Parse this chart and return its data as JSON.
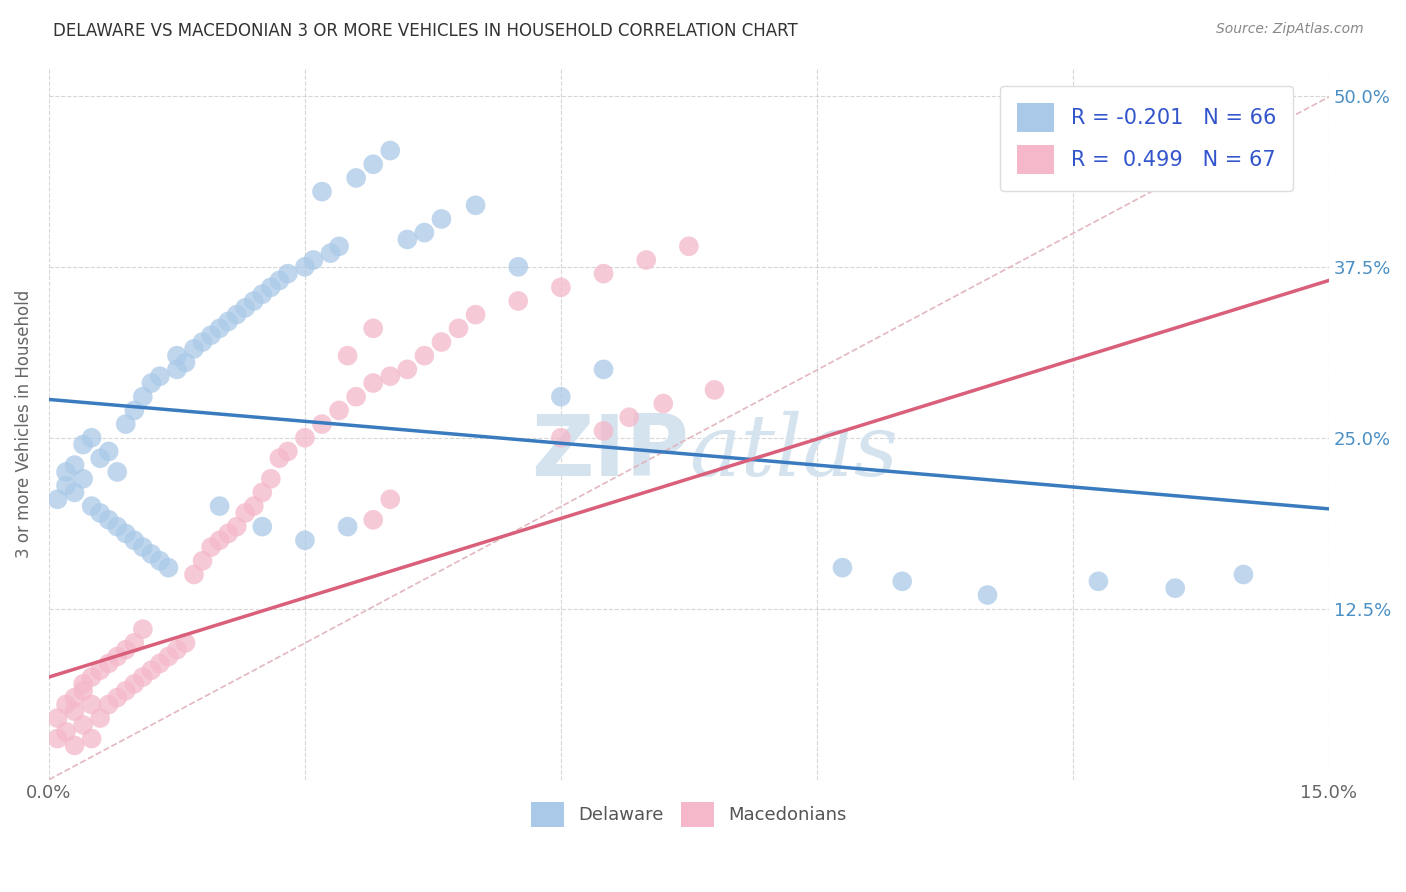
{
  "title": "DELAWARE VS MACEDONIAN 3 OR MORE VEHICLES IN HOUSEHOLD CORRELATION CHART",
  "source": "Source: ZipAtlas.com",
  "ylabel": "3 or more Vehicles in Household",
  "xlim": [
    0.0,
    0.15
  ],
  "ylim": [
    0.0,
    0.52
  ],
  "legend_r_delaware": "-0.201",
  "legend_n_delaware": "66",
  "legend_r_macedonian": "0.499",
  "legend_n_macedonian": "67",
  "color_delaware": "#aac9e8",
  "color_macedonian": "#f4b8ca",
  "color_delaware_line": "#3a7bbf",
  "color_macedonian_line": "#d95f7a",
  "color_diagonal_dashed": "#e0b0b8",
  "watermark_color": "#d5e3ef",
  "del_line_x0": 0.0,
  "del_line_y0": 0.278,
  "del_line_x1": 0.15,
  "del_line_y1": 0.198,
  "mac_line_x0": 0.0,
  "mac_line_y0": 0.075,
  "mac_line_x1": 0.15,
  "mac_line_y1": 0.365,
  "delaware_x": [
    0.001,
    0.002,
    0.002,
    0.003,
    0.003,
    0.004,
    0.004,
    0.005,
    0.005,
    0.006,
    0.006,
    0.007,
    0.007,
    0.008,
    0.008,
    0.009,
    0.009,
    0.01,
    0.01,
    0.011,
    0.011,
    0.012,
    0.012,
    0.013,
    0.013,
    0.014,
    0.015,
    0.015,
    0.016,
    0.017,
    0.018,
    0.019,
    0.02,
    0.021,
    0.022,
    0.023,
    0.024,
    0.025,
    0.026,
    0.027,
    0.028,
    0.03,
    0.031,
    0.032,
    0.033,
    0.034,
    0.036,
    0.038,
    0.04,
    0.042,
    0.044,
    0.046,
    0.05,
    0.055,
    0.06,
    0.065,
    0.02,
    0.025,
    0.03,
    0.035,
    0.093,
    0.1,
    0.11,
    0.123,
    0.132,
    0.14
  ],
  "delaware_y": [
    0.205,
    0.215,
    0.225,
    0.21,
    0.23,
    0.22,
    0.245,
    0.2,
    0.25,
    0.195,
    0.235,
    0.19,
    0.24,
    0.185,
    0.225,
    0.18,
    0.26,
    0.175,
    0.27,
    0.17,
    0.28,
    0.165,
    0.29,
    0.16,
    0.295,
    0.155,
    0.3,
    0.31,
    0.305,
    0.315,
    0.32,
    0.325,
    0.33,
    0.335,
    0.34,
    0.345,
    0.35,
    0.355,
    0.36,
    0.365,
    0.37,
    0.375,
    0.38,
    0.43,
    0.385,
    0.39,
    0.44,
    0.45,
    0.46,
    0.395,
    0.4,
    0.41,
    0.42,
    0.375,
    0.28,
    0.3,
    0.2,
    0.185,
    0.175,
    0.185,
    0.155,
    0.145,
    0.135,
    0.145,
    0.14,
    0.15
  ],
  "macedonian_x": [
    0.001,
    0.001,
    0.002,
    0.002,
    0.003,
    0.003,
    0.003,
    0.004,
    0.004,
    0.004,
    0.005,
    0.005,
    0.005,
    0.006,
    0.006,
    0.007,
    0.007,
    0.008,
    0.008,
    0.009,
    0.009,
    0.01,
    0.01,
    0.011,
    0.011,
    0.012,
    0.013,
    0.014,
    0.015,
    0.016,
    0.017,
    0.018,
    0.019,
    0.02,
    0.021,
    0.022,
    0.023,
    0.024,
    0.025,
    0.026,
    0.027,
    0.028,
    0.03,
    0.032,
    0.034,
    0.036,
    0.038,
    0.04,
    0.042,
    0.044,
    0.046,
    0.048,
    0.05,
    0.055,
    0.06,
    0.065,
    0.07,
    0.075,
    0.038,
    0.04,
    0.035,
    0.038,
    0.06,
    0.065,
    0.068,
    0.072,
    0.078
  ],
  "macedonian_y": [
    0.03,
    0.045,
    0.035,
    0.055,
    0.025,
    0.05,
    0.06,
    0.04,
    0.065,
    0.07,
    0.03,
    0.055,
    0.075,
    0.045,
    0.08,
    0.055,
    0.085,
    0.06,
    0.09,
    0.065,
    0.095,
    0.07,
    0.1,
    0.075,
    0.11,
    0.08,
    0.085,
    0.09,
    0.095,
    0.1,
    0.15,
    0.16,
    0.17,
    0.175,
    0.18,
    0.185,
    0.195,
    0.2,
    0.21,
    0.22,
    0.235,
    0.24,
    0.25,
    0.26,
    0.27,
    0.28,
    0.29,
    0.295,
    0.3,
    0.31,
    0.32,
    0.33,
    0.34,
    0.35,
    0.36,
    0.37,
    0.38,
    0.39,
    0.19,
    0.205,
    0.31,
    0.33,
    0.25,
    0.255,
    0.265,
    0.275,
    0.285
  ]
}
